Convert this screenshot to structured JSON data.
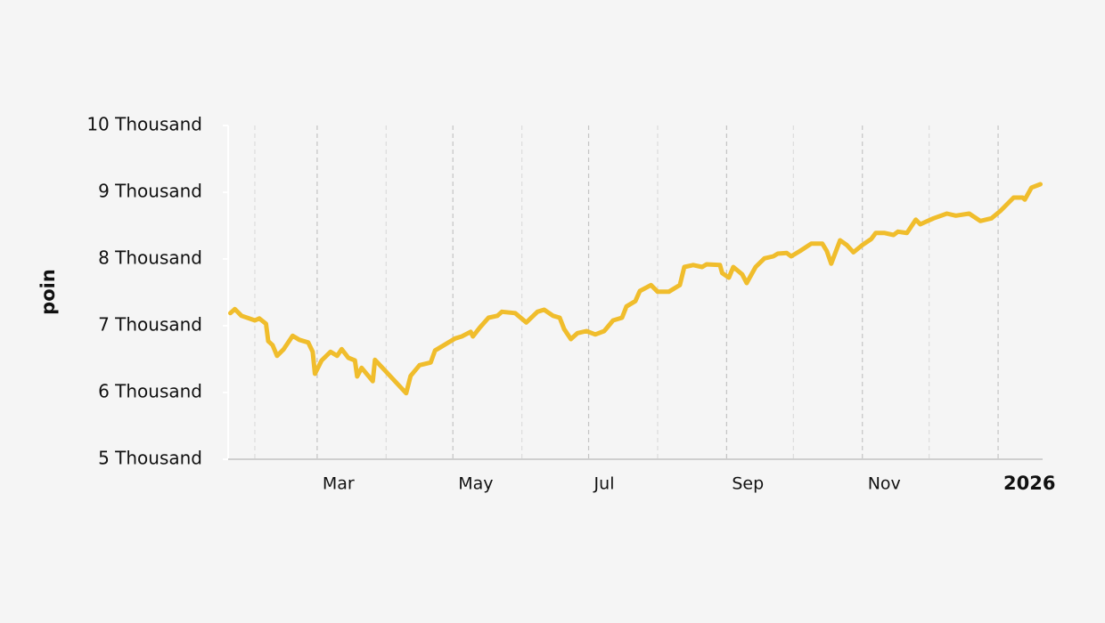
{
  "chart_data": {
    "type": "line",
    "y_label": "poin",
    "color": "#f0bd2c",
    "xlim": [
      "2025-01-20",
      "2026-01-21"
    ],
    "xticks": [
      {
        "value": "2025-03-01",
        "label": "Mar"
      },
      {
        "value": "2025-05-01",
        "label": "May"
      },
      {
        "value": "2025-07-01",
        "label": "Jul"
      },
      {
        "value": "2025-09-01",
        "label": "Sep"
      },
      {
        "value": "2025-11-01",
        "label": "Nov"
      },
      {
        "value": "2026-01-01",
        "label": "2026"
      }
    ],
    "x_minor_ticks": [
      "2025-02-01",
      "2025-04-01",
      "2025-06-01",
      "2025-08-01",
      "2025-10-01",
      "2025-12-01"
    ],
    "ylim": [
      5000,
      10000
    ],
    "yticks": [
      {
        "value": 5000,
        "label": "5 Thousand"
      },
      {
        "value": 6000,
        "label": "6 Thousand"
      },
      {
        "value": 7000,
        "label": "7 Thousand"
      },
      {
        "value": 8000,
        "label": "8 Thousand"
      },
      {
        "value": 9000,
        "label": "9 Thousand"
      },
      {
        "value": 10000,
        "label": "10 Thousand"
      }
    ],
    "grid": true,
    "x": [
      "2025-01-21",
      "2025-01-23",
      "2025-01-26",
      "2025-02-01",
      "2025-02-03",
      "2025-02-06",
      "2025-02-07",
      "2025-02-09",
      "2025-02-11",
      "2025-02-14",
      "2025-02-18",
      "2025-02-21",
      "2025-02-25",
      "2025-02-27",
      "2025-02-28",
      "2025-03-03",
      "2025-03-07",
      "2025-03-10",
      "2025-03-12",
      "2025-03-15",
      "2025-03-18",
      "2025-03-19",
      "2025-03-21",
      "2025-03-26",
      "2025-03-27",
      "2025-04-10",
      "2025-04-12",
      "2025-04-16",
      "2025-04-21",
      "2025-04-23",
      "2025-04-29",
      "2025-05-02",
      "2025-05-05",
      "2025-05-09",
      "2025-05-10",
      "2025-05-13",
      "2025-05-17",
      "2025-05-21",
      "2025-05-23",
      "2025-05-29",
      "2025-06-03",
      "2025-06-08",
      "2025-06-11",
      "2025-06-15",
      "2025-06-18",
      "2025-06-20",
      "2025-06-23",
      "2025-06-26",
      "2025-06-30",
      "2025-07-04",
      "2025-07-08",
      "2025-07-12",
      "2025-07-16",
      "2025-07-18",
      "2025-07-22",
      "2025-07-24",
      "2025-07-29",
      "2025-08-01",
      "2025-08-06",
      "2025-08-11",
      "2025-08-13",
      "2025-08-17",
      "2025-08-21",
      "2025-08-23",
      "2025-08-29",
      "2025-08-30",
      "2025-09-02",
      "2025-09-04",
      "2025-09-08",
      "2025-09-10",
      "2025-09-14",
      "2025-09-18",
      "2025-09-22",
      "2025-09-24",
      "2025-09-28",
      "2025-09-30",
      "2025-10-04",
      "2025-10-09",
      "2025-10-14",
      "2025-10-16",
      "2025-10-18",
      "2025-10-22",
      "2025-10-25",
      "2025-10-28",
      "2025-11-01",
      "2025-11-05",
      "2025-11-07",
      "2025-11-11",
      "2025-11-15",
      "2025-11-17",
      "2025-11-21",
      "2025-11-25",
      "2025-11-27",
      "2025-12-03",
      "2025-12-09",
      "2025-12-13",
      "2025-12-19",
      "2025-12-24",
      "2025-12-29",
      "2026-01-02",
      "2026-01-08",
      "2026-01-12",
      "2026-01-13",
      "2026-01-16",
      "2026-01-20"
    ],
    "values": [
      7190,
      7250,
      7150,
      7080,
      7110,
      7030,
      6770,
      6710,
      6550,
      6650,
      6850,
      6790,
      6750,
      6610,
      6280,
      6480,
      6610,
      6550,
      6650,
      6520,
      6480,
      6240,
      6370,
      6170,
      6490,
      5990,
      6250,
      6410,
      6450,
      6630,
      6750,
      6810,
      6840,
      6910,
      6840,
      6970,
      7120,
      7150,
      7210,
      7190,
      7050,
      7210,
      7240,
      7150,
      7120,
      6950,
      6800,
      6890,
      6920,
      6870,
      6920,
      7080,
      7120,
      7290,
      7370,
      7520,
      7610,
      7510,
      7510,
      7610,
      7880,
      7910,
      7880,
      7920,
      7910,
      7790,
      7720,
      7880,
      7770,
      7640,
      7880,
      8010,
      8040,
      8080,
      8090,
      8040,
      8120,
      8230,
      8230,
      8120,
      7930,
      8280,
      8210,
      8100,
      8210,
      8300,
      8390,
      8390,
      8360,
      8410,
      8390,
      8590,
      8520,
      8610,
      8680,
      8650,
      8680,
      8570,
      8610,
      8720,
      8920,
      8920,
      8890,
      9070,
      9120
    ]
  }
}
